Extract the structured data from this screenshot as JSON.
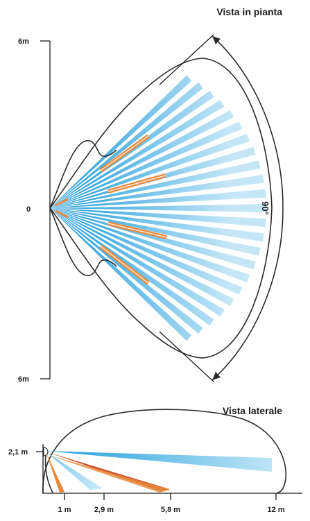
{
  "plan_view": {
    "title": "Vista in pianta",
    "y_top_label": "6m",
    "y_origin_label": "0",
    "y_bottom_label": "6m",
    "angle_label": "90°",
    "beam_count": 23,
    "colors": {
      "beam_light": "#bfe4f6",
      "beam_dark": "#1a9ad9",
      "short_range": "#e9893c",
      "outline": "#2b2b2b"
    }
  },
  "side_view": {
    "title": "Vista laterale",
    "height_label": "2,1 m",
    "distance_labels": [
      "1 m",
      "2,9 m",
      "5,8 m",
      "12 m"
    ],
    "colors": {
      "long_beam": "#2aa8df",
      "mid_beam": "#c8502a",
      "short_beam": "#e9893c"
    }
  }
}
